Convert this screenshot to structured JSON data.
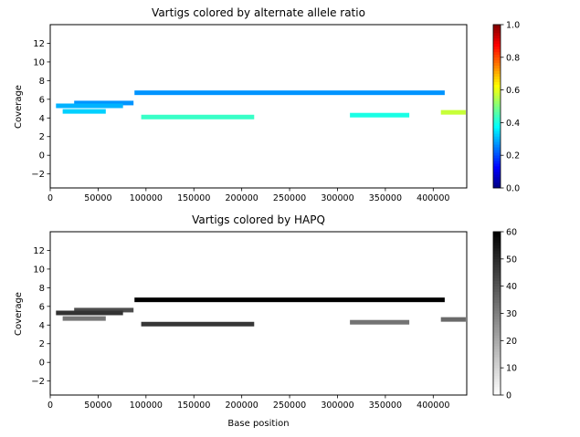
{
  "chart_data": [
    {
      "type": "segment",
      "title": "Vartigs colored by alternate allele ratio",
      "xlabel": "",
      "ylabel": "Coverage",
      "xlim": [
        0,
        435000
      ],
      "ylim": [
        -3.5,
        14
      ],
      "xticks": [
        0,
        50000,
        100000,
        150000,
        200000,
        250000,
        300000,
        350000,
        400000
      ],
      "yticks": [
        -2,
        0,
        2,
        4,
        6,
        8,
        10,
        12
      ],
      "colorbar": {
        "colormap": "jet",
        "range": [
          0,
          1
        ],
        "ticks": [
          "0.0",
          "0.2",
          "0.4",
          "0.6",
          "0.8",
          "1.0"
        ]
      },
      "segments": [
        {
          "x0": 88000,
          "x1": 412000,
          "y": 6.7,
          "c": 0.27
        },
        {
          "x0": 25000,
          "x1": 87000,
          "y": 5.6,
          "c": 0.27
        },
        {
          "x0": 6000,
          "x1": 76000,
          "y": 5.3,
          "c": 0.3
        },
        {
          "x0": 13000,
          "x1": 58000,
          "y": 4.7,
          "c": 0.33
        },
        {
          "x0": 95000,
          "x1": 213000,
          "y": 4.1,
          "c": 0.43
        },
        {
          "x0": 313000,
          "x1": 375000,
          "y": 4.3,
          "c": 0.4
        },
        {
          "x0": 408000,
          "x1": 434000,
          "y": 4.6,
          "c": 0.57
        }
      ]
    },
    {
      "type": "segment",
      "title": "Vartigs colored by HAPQ",
      "xlabel": "Base position",
      "ylabel": "Coverage",
      "xlim": [
        0,
        435000
      ],
      "ylim": [
        -3.5,
        14
      ],
      "xticks": [
        0,
        50000,
        100000,
        150000,
        200000,
        250000,
        300000,
        350000,
        400000
      ],
      "yticks": [
        -2,
        0,
        2,
        4,
        6,
        8,
        10,
        12
      ],
      "colorbar": {
        "colormap": "gray_r",
        "range": [
          0,
          60
        ],
        "ticks": [
          "0",
          "10",
          "20",
          "30",
          "40",
          "50",
          "60"
        ]
      },
      "segments": [
        {
          "x0": 88000,
          "x1": 412000,
          "y": 6.7,
          "c": 60
        },
        {
          "x0": 25000,
          "x1": 87000,
          "y": 5.6,
          "c": 42
        },
        {
          "x0": 6000,
          "x1": 76000,
          "y": 5.3,
          "c": 48
        },
        {
          "x0": 13000,
          "x1": 58000,
          "y": 4.7,
          "c": 32
        },
        {
          "x0": 95000,
          "x1": 213000,
          "y": 4.1,
          "c": 47
        },
        {
          "x0": 313000,
          "x1": 375000,
          "y": 4.3,
          "c": 33
        },
        {
          "x0": 408000,
          "x1": 434000,
          "y": 4.6,
          "c": 35
        }
      ]
    }
  ]
}
